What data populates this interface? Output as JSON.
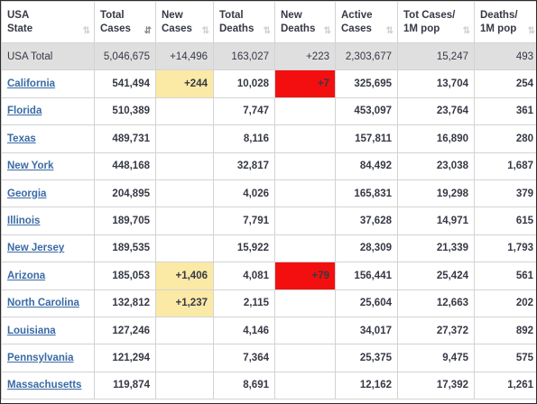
{
  "headers": [
    {
      "l1": "USA",
      "l2": "State"
    },
    {
      "l1": "Total",
      "l2": "Cases"
    },
    {
      "l1": "New",
      "l2": "Cases"
    },
    {
      "l1": "Total",
      "l2": "Deaths"
    },
    {
      "l1": "New",
      "l2": "Deaths"
    },
    {
      "l1": "Active",
      "l2": "Cases"
    },
    {
      "l1": "Tot Cases/",
      "l2": "1M pop"
    },
    {
      "l1": "Deaths/",
      "l2": "1M pop"
    }
  ],
  "sort_icons": {
    "unsorted": "⇅",
    "sorted": "⇵"
  },
  "colors": {
    "link": "#3a6aa5",
    "new_cases_highlight": "#fbe9a6",
    "new_deaths_highlight": "#f30f0f",
    "total_row_bg": "#dfdfdf"
  },
  "total": {
    "state": "USA Total",
    "total_cases": "5,046,675",
    "new_cases": "+14,496",
    "total_deaths": "163,027",
    "new_deaths": "+223",
    "active_cases": "2,303,677",
    "tot_cases_per_1m": "15,247",
    "deaths_per_1m": "493"
  },
  "rows": [
    {
      "state": "California",
      "total_cases": "541,494",
      "new_cases": "+244",
      "total_deaths": "10,028",
      "new_deaths": "+7",
      "active_cases": "325,695",
      "tot_cases_per_1m": "13,704",
      "deaths_per_1m": "254"
    },
    {
      "state": "Florida",
      "total_cases": "510,389",
      "new_cases": "",
      "total_deaths": "7,747",
      "new_deaths": "",
      "active_cases": "453,097",
      "tot_cases_per_1m": "23,764",
      "deaths_per_1m": "361"
    },
    {
      "state": "Texas",
      "total_cases": "489,731",
      "new_cases": "",
      "total_deaths": "8,116",
      "new_deaths": "",
      "active_cases": "157,811",
      "tot_cases_per_1m": "16,890",
      "deaths_per_1m": "280"
    },
    {
      "state": "New York",
      "total_cases": "448,168",
      "new_cases": "",
      "total_deaths": "32,817",
      "new_deaths": "",
      "active_cases": "84,492",
      "tot_cases_per_1m": "23,038",
      "deaths_per_1m": "1,687"
    },
    {
      "state": "Georgia",
      "total_cases": "204,895",
      "new_cases": "",
      "total_deaths": "4,026",
      "new_deaths": "",
      "active_cases": "165,831",
      "tot_cases_per_1m": "19,298",
      "deaths_per_1m": "379"
    },
    {
      "state": "Illinois",
      "total_cases": "189,705",
      "new_cases": "",
      "total_deaths": "7,791",
      "new_deaths": "",
      "active_cases": "37,628",
      "tot_cases_per_1m": "14,971",
      "deaths_per_1m": "615"
    },
    {
      "state": "New Jersey",
      "total_cases": "189,535",
      "new_cases": "",
      "total_deaths": "15,922",
      "new_deaths": "",
      "active_cases": "28,309",
      "tot_cases_per_1m": "21,339",
      "deaths_per_1m": "1,793"
    },
    {
      "state": "Arizona",
      "total_cases": "185,053",
      "new_cases": "+1,406",
      "total_deaths": "4,081",
      "new_deaths": "+79",
      "active_cases": "156,441",
      "tot_cases_per_1m": "25,424",
      "deaths_per_1m": "561"
    },
    {
      "state": "North Carolina",
      "total_cases": "132,812",
      "new_cases": "+1,237",
      "total_deaths": "2,115",
      "new_deaths": "",
      "active_cases": "25,604",
      "tot_cases_per_1m": "12,663",
      "deaths_per_1m": "202"
    },
    {
      "state": "Louisiana",
      "total_cases": "127,246",
      "new_cases": "",
      "total_deaths": "4,146",
      "new_deaths": "",
      "active_cases": "34,017",
      "tot_cases_per_1m": "27,372",
      "deaths_per_1m": "892"
    },
    {
      "state": "Pennsylvania",
      "total_cases": "121,294",
      "new_cases": "",
      "total_deaths": "7,364",
      "new_deaths": "",
      "active_cases": "25,375",
      "tot_cases_per_1m": "9,475",
      "deaths_per_1m": "575"
    },
    {
      "state": "Massachusetts",
      "total_cases": "119,874",
      "new_cases": "",
      "total_deaths": "8,691",
      "new_deaths": "",
      "active_cases": "12,162",
      "tot_cases_per_1m": "17,392",
      "deaths_per_1m": "1,261"
    }
  ]
}
